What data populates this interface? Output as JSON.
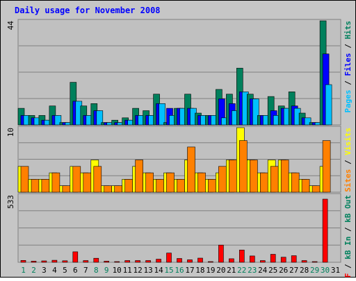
{
  "chart_data": [
    {
      "type": "bar",
      "title": "Daily usage for November 2008",
      "x_labels": [
        "1",
        "2",
        "3",
        "4",
        "5",
        "6",
        "7",
        "8",
        "9",
        "10",
        "11",
        "12",
        "13",
        "14",
        "15",
        "16",
        "17",
        "18",
        "19",
        "20",
        "21",
        "22",
        "23",
        "24",
        "25",
        "26",
        "27",
        "28",
        "29",
        "30",
        "31"
      ],
      "weekend_days": [
        "1",
        "2",
        "8",
        "9",
        "15",
        "16",
        "22",
        "23",
        "29",
        "30"
      ],
      "ymax_label": "44",
      "ylim": [
        0,
        44
      ],
      "legend": [
        "Pages",
        "Files",
        "Hits"
      ],
      "series": [
        {
          "name": "Hits",
          "color": "#00805c",
          "values": [
            7,
            4,
            4,
            8,
            1,
            18,
            8,
            9,
            1,
            2,
            3,
            7,
            6,
            13,
            1,
            7,
            13,
            5,
            4,
            15,
            13,
            24,
            13,
            4,
            12,
            8,
            14,
            5,
            1,
            44,
            0
          ]
        },
        {
          "name": "Files",
          "color": "#0000ff",
          "values": [
            4,
            3,
            2,
            4,
            1,
            10,
            4,
            6,
            1,
            1,
            2,
            4,
            4,
            9,
            7,
            7,
            7,
            4,
            4,
            11,
            9,
            14,
            11,
            4,
            6,
            7,
            8,
            3,
            1,
            30,
            0
          ]
        },
        {
          "name": "Pages",
          "color": "#00c0ff",
          "values": [
            4,
            3,
            2,
            4,
            1,
            10,
            4,
            6,
            1,
            1,
            2,
            4,
            4,
            9,
            4,
            7,
            7,
            4,
            4,
            3,
            6,
            14,
            11,
            4,
            4,
            7,
            7,
            3,
            1,
            17,
            0
          ]
        }
      ]
    },
    {
      "type": "bar",
      "ymax_label": "10",
      "ylim": [
        0,
        10
      ],
      "legend": [
        "Sites",
        "Visits"
      ],
      "series": [
        {
          "name": "Visits",
          "color": "#ffff00",
          "values": [
            4,
            2,
            2,
            3,
            1,
            4,
            3,
            5,
            1,
            1,
            2,
            4,
            3,
            2,
            3,
            2,
            5,
            3,
            2,
            3,
            5,
            10,
            5,
            3,
            5,
            5,
            3,
            2,
            1,
            4,
            0
          ]
        },
        {
          "name": "Sites",
          "color": "#ff8000",
          "values": [
            4,
            2,
            2,
            3,
            1,
            4,
            3,
            4,
            1,
            1,
            2,
            5,
            3,
            2,
            3,
            2,
            7,
            3,
            2,
            4,
            5,
            8,
            5,
            3,
            4,
            5,
            3,
            2,
            1,
            8,
            0
          ]
        }
      ]
    },
    {
      "type": "bar",
      "ymax_label": "533",
      "ylim": [
        0,
        533
      ],
      "legend": [
        "kB F",
        "kB In",
        "kB Out"
      ],
      "series": [
        {
          "name": "kB F",
          "color": "#ff0000",
          "values": [
            15,
            9,
            11,
            16,
            12,
            83,
            14,
            32,
            9,
            3,
            14,
            14,
            14,
            25,
            73,
            30,
            20,
            33,
            5,
            136,
            28,
            97,
            50,
            14,
            63,
            40,
            52,
            14,
            1,
            500,
            0
          ]
        }
      ]
    }
  ]
}
